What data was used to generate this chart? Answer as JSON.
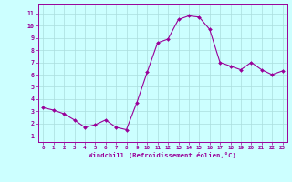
{
  "x": [
    0,
    1,
    2,
    3,
    4,
    5,
    6,
    7,
    8,
    9,
    10,
    11,
    12,
    13,
    14,
    15,
    16,
    17,
    18,
    19,
    20,
    21,
    22,
    23
  ],
  "y": [
    3.3,
    3.1,
    2.8,
    2.3,
    1.7,
    1.9,
    2.3,
    1.7,
    1.5,
    3.7,
    6.2,
    8.6,
    8.9,
    10.5,
    10.8,
    10.7,
    9.7,
    7.0,
    6.7,
    6.4,
    7.0,
    6.4,
    6.0,
    6.3
  ],
  "line_color": "#990099",
  "marker_color": "#990099",
  "bg_color": "#ccffff",
  "grid_color": "#aadddd",
  "xlabel": "Windchill (Refroidissement éolien,°C)",
  "xlabel_color": "#990099",
  "ylabel_ticks": [
    1,
    2,
    3,
    4,
    5,
    6,
    7,
    8,
    9,
    10,
    11
  ],
  "xtick_labels": [
    "0",
    "1",
    "2",
    "3",
    "4",
    "5",
    "6",
    "7",
    "8",
    "9",
    "10",
    "11",
    "12",
    "13",
    "14",
    "15",
    "16",
    "17",
    "18",
    "19",
    "20",
    "21",
    "22",
    "23"
  ],
  "ylim": [
    0.5,
    11.8
  ],
  "xlim": [
    -0.5,
    23.5
  ]
}
